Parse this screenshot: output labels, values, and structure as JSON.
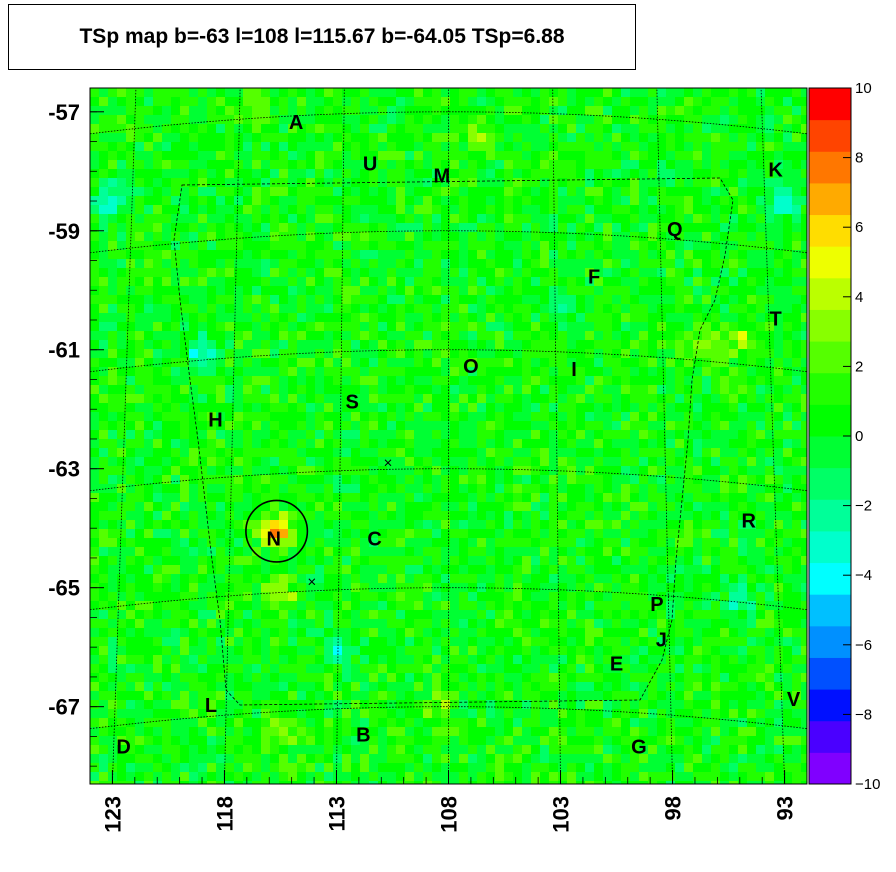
{
  "title": "TSp map b=-63 l=108 l=115.67 b=-64.05 TSp=6.88",
  "chart_data": {
    "type": "heatmap",
    "title": "TSp map b=-63 l=108 l=115.67 b=-64.05 TSp=6.88",
    "x_axis": {
      "label": "",
      "range": [
        124,
        92
      ],
      "ticks": [
        "123",
        "118",
        "113",
        "108",
        "103",
        "98",
        "93"
      ],
      "tick_values": [
        123,
        118,
        113,
        108,
        103,
        98,
        93
      ],
      "reversed": true
    },
    "y_axis": {
      "label": "",
      "range": [
        -68.3,
        -56.6
      ],
      "ticks": [
        "-57",
        "-59",
        "-61",
        "-63",
        "-65",
        "-67"
      ],
      "tick_values": [
        -57,
        -59,
        -61,
        -63,
        -65,
        -67
      ]
    },
    "colorbar": {
      "range": [
        -10,
        10
      ],
      "ticks": [
        "10",
        "8",
        "6",
        "4",
        "2",
        "0",
        "−2",
        "−4",
        "−6",
        "−8",
        "−10"
      ],
      "colors": [
        "#8000ff",
        "#4a00ff",
        "#0010ff",
        "#0050ff",
        "#0090ff",
        "#00c0ff",
        "#00ffff",
        "#00ffcc",
        "#00ff99",
        "#00ff66",
        "#00ff33",
        "#00ff00",
        "#22ff00",
        "#55ff00",
        "#88ff00",
        "#bbff00",
        "#eeff00",
        "#ffdd00",
        "#ffaa00",
        "#ff7700",
        "#ff4400",
        "#ff0000"
      ]
    },
    "background_value": 0.5,
    "hotspots": [
      {
        "l": 115.67,
        "b": -64.05,
        "value": 6.88
      },
      {
        "l": 115.5,
        "b": -65.1,
        "value": 3.5
      },
      {
        "l": 96.5,
        "b": -61.0,
        "value": 4.0
      },
      {
        "l": 106.5,
        "b": -57.4,
        "value": 3.5
      },
      {
        "l": 115.5,
        "b": -67.4,
        "value": 3.5
      },
      {
        "l": 117.0,
        "b": -57.0,
        "value": 2.5
      },
      {
        "l": 108.5,
        "b": -67.0,
        "value": 3.0
      },
      {
        "l": 95.0,
        "b": -60.8,
        "value": 3.5
      }
    ],
    "coldspots": [
      {
        "l": 119.0,
        "b": -61.0,
        "value": -3.5
      },
      {
        "l": 123.0,
        "b": -58.5,
        "value": -3.5
      },
      {
        "l": 93.0,
        "b": -58.5,
        "value": -4.0
      },
      {
        "l": 113.0,
        "b": -66.0,
        "value": -3.0
      },
      {
        "l": 95.0,
        "b": -65.2,
        "value": -2.5
      },
      {
        "l": 103.0,
        "b": -60.3,
        "value": -2.5
      }
    ],
    "circle": {
      "l": 115.67,
      "b": -64.05,
      "radius_deg": 0.5
    },
    "crosses": [
      {
        "l": 110.7,
        "b": -62.9
      },
      {
        "l": 114.1,
        "b": -64.9
      }
    ],
    "sources": [
      {
        "name": "A",
        "l": 114.8,
        "b": -57.2
      },
      {
        "name": "U",
        "l": 111.5,
        "b": -57.9
      },
      {
        "name": "M",
        "l": 108.3,
        "b": -58.1
      },
      {
        "name": "K",
        "l": 93.4,
        "b": -58.0
      },
      {
        "name": "Q",
        "l": 97.9,
        "b": -59.0
      },
      {
        "name": "F",
        "l": 101.5,
        "b": -59.8
      },
      {
        "name": "T",
        "l": 93.4,
        "b": -60.5
      },
      {
        "name": "O",
        "l": 107.0,
        "b": -61.3
      },
      {
        "name": "I",
        "l": 102.4,
        "b": -61.35
      },
      {
        "name": "S",
        "l": 112.3,
        "b": -61.9
      },
      {
        "name": "H",
        "l": 118.4,
        "b": -62.2
      },
      {
        "name": "N",
        "l": 115.8,
        "b": -64.2
      },
      {
        "name": "C",
        "l": 111.3,
        "b": -64.2
      },
      {
        "name": "R",
        "l": 94.6,
        "b": -63.9
      },
      {
        "name": "P",
        "l": 98.7,
        "b": -65.3
      },
      {
        "name": "J",
        "l": 98.5,
        "b": -65.9
      },
      {
        "name": "E",
        "l": 100.5,
        "b": -66.3
      },
      {
        "name": "V",
        "l": 92.6,
        "b": -66.9
      },
      {
        "name": "L",
        "l": 118.6,
        "b": -67.0
      },
      {
        "name": "B",
        "l": 111.8,
        "b": -67.5
      },
      {
        "name": "D",
        "l": 122.5,
        "b": -67.7
      },
      {
        "name": "G",
        "l": 99.5,
        "b": -67.7
      }
    ]
  }
}
